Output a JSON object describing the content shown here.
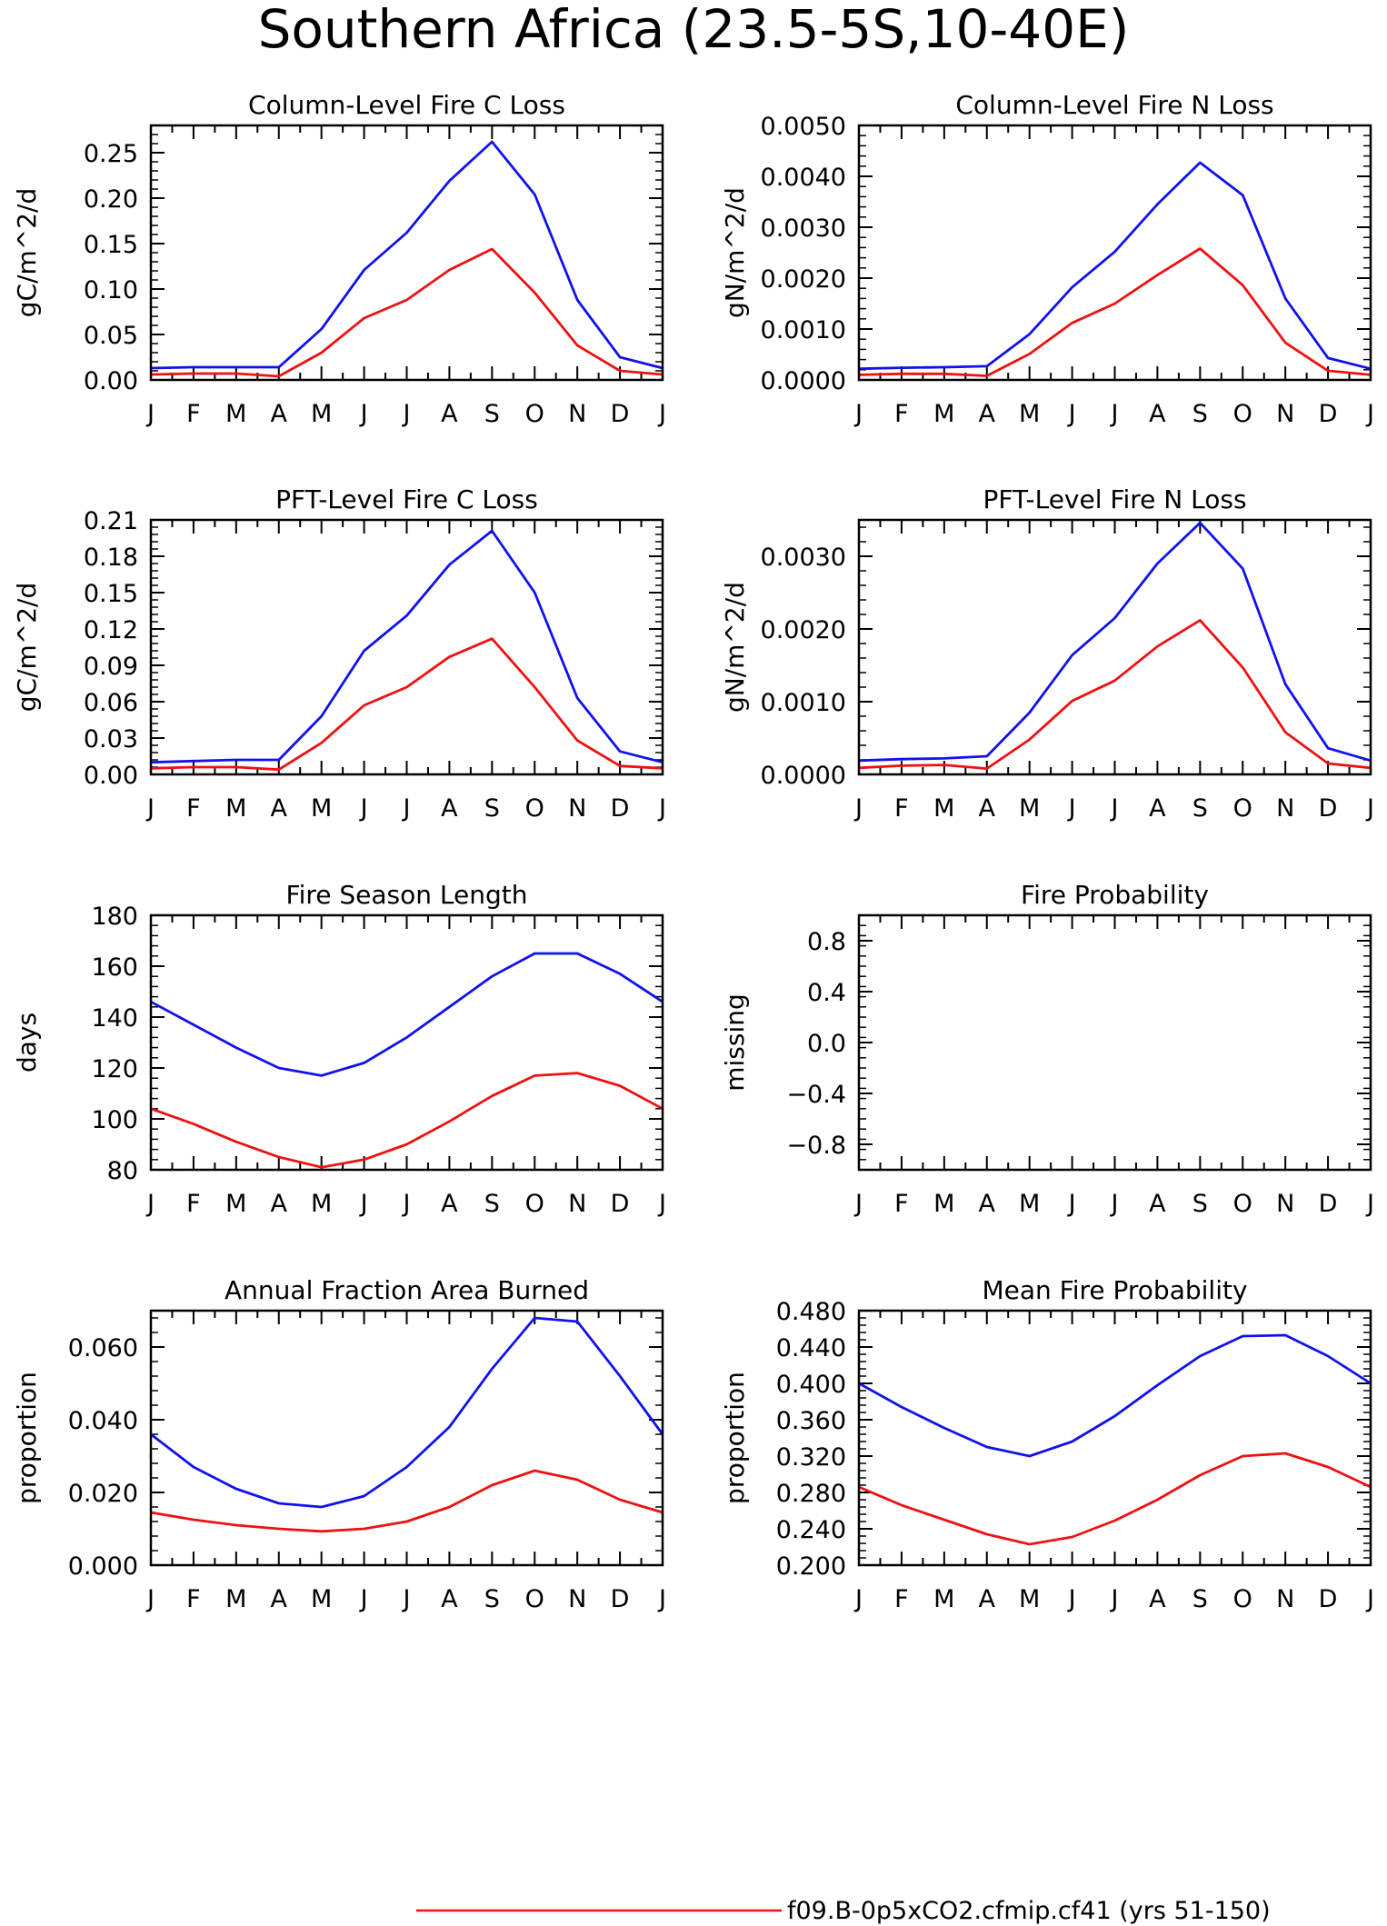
{
  "page_title": "Southern Africa (23.5-5S,10-40E)",
  "legend": {
    "entries": [
      {
        "label": "f09.B-0p5xCO2.cfmip.cf41 (yrs 51-150)",
        "color": "#ee1111"
      }
    ]
  },
  "months": [
    "J",
    "F",
    "M",
    "A",
    "M",
    "J",
    "J",
    "A",
    "S",
    "O",
    "N",
    "D",
    "J"
  ],
  "chart_data": [
    {
      "type": "line",
      "title": "Column-Level Fire C Loss",
      "ylabel": "gC/m^2/d",
      "xlabel": "",
      "categories": [
        "J",
        "F",
        "M",
        "A",
        "M",
        "J",
        "J",
        "A",
        "S",
        "O",
        "N",
        "D",
        "J"
      ],
      "ylim": [
        0,
        0.28
      ],
      "yticks": [
        "0.00",
        "0.05",
        "0.10",
        "0.15",
        "0.20",
        "0.25"
      ],
      "series": [
        {
          "color": "#1111ee",
          "values": [
            0.013,
            0.014,
            0.014,
            0.014,
            0.056,
            0.121,
            0.162,
            0.219,
            0.262,
            0.204,
            0.088,
            0.025,
            0.013
          ]
        },
        {
          "color": "#ee1111",
          "values": [
            0.006,
            0.007,
            0.007,
            0.004,
            0.03,
            0.068,
            0.088,
            0.121,
            0.144,
            0.096,
            0.038,
            0.01,
            0.006
          ]
        }
      ],
      "grid": false
    },
    {
      "type": "line",
      "title": "Column-Level Fire N Loss",
      "ylabel": "gN/m^2/d",
      "xlabel": "",
      "categories": [
        "J",
        "F",
        "M",
        "A",
        "M",
        "J",
        "J",
        "A",
        "S",
        "O",
        "N",
        "D",
        "J"
      ],
      "ylim": [
        0,
        0.005
      ],
      "yticks": [
        "0.0000",
        "0.0010",
        "0.0020",
        "0.0030",
        "0.0040",
        "0.0050"
      ],
      "series": [
        {
          "color": "#1111ee",
          "values": [
            0.00022,
            0.00024,
            0.00025,
            0.00027,
            0.0009,
            0.00182,
            0.00252,
            0.00345,
            0.00427,
            0.00363,
            0.0016,
            0.00043,
            0.00022
          ]
        },
        {
          "color": "#ee1111",
          "values": [
            0.0001,
            0.00012,
            0.00012,
            8e-05,
            0.00051,
            0.00112,
            0.0015,
            0.00206,
            0.00258,
            0.00186,
            0.00073,
            0.00018,
            0.0001
          ]
        }
      ],
      "grid": false
    },
    {
      "type": "line",
      "title": "PFT-Level Fire C Loss",
      "ylabel": "gC/m^2/d",
      "xlabel": "",
      "categories": [
        "J",
        "F",
        "M",
        "A",
        "M",
        "J",
        "J",
        "A",
        "S",
        "O",
        "N",
        "D",
        "J"
      ],
      "ylim": [
        0,
        0.21
      ],
      "yticks": [
        "0.00",
        "0.03",
        "0.06",
        "0.09",
        "0.12",
        "0.15",
        "0.18",
        "0.21"
      ],
      "series": [
        {
          "color": "#1111ee",
          "values": [
            0.01,
            0.011,
            0.012,
            0.012,
            0.048,
            0.102,
            0.131,
            0.173,
            0.201,
            0.15,
            0.063,
            0.019,
            0.01
          ]
        },
        {
          "color": "#ee1111",
          "values": [
            0.005,
            0.006,
            0.006,
            0.004,
            0.026,
            0.057,
            0.072,
            0.097,
            0.112,
            0.072,
            0.028,
            0.007,
            0.005
          ]
        }
      ],
      "grid": false
    },
    {
      "type": "line",
      "title": "PFT-Level Fire N Loss",
      "ylabel": "gN/m^2/d",
      "xlabel": "",
      "categories": [
        "J",
        "F",
        "M",
        "A",
        "M",
        "J",
        "J",
        "A",
        "S",
        "O",
        "N",
        "D",
        "J"
      ],
      "ylim": [
        0,
        0.0035
      ],
      "yticks": [
        "0.0000",
        "0.0010",
        "0.0020",
        "0.0030"
      ],
      "series": [
        {
          "color": "#1111ee",
          "values": [
            0.00019,
            0.00021,
            0.00022,
            0.00025,
            0.00085,
            0.00164,
            0.00215,
            0.0029,
            0.00346,
            0.00283,
            0.00124,
            0.00036,
            0.00019
          ]
        },
        {
          "color": "#ee1111",
          "values": [
            9e-05,
            0.00012,
            0.00013,
            8e-05,
            0.00048,
            0.00101,
            0.00129,
            0.00176,
            0.00212,
            0.00147,
            0.00058,
            0.00015,
            9e-05
          ]
        }
      ],
      "grid": false
    },
    {
      "type": "line",
      "title": "Fire Season Length",
      "ylabel": "days",
      "xlabel": "",
      "categories": [
        "J",
        "F",
        "M",
        "A",
        "M",
        "J",
        "J",
        "A",
        "S",
        "O",
        "N",
        "D",
        "J"
      ],
      "ylim": [
        80,
        180
      ],
      "yticks": [
        "80",
        "100",
        "120",
        "140",
        "160",
        "180"
      ],
      "series": [
        {
          "color": "#1111ee",
          "values": [
            146,
            137,
            128,
            120,
            117,
            122,
            132,
            144,
            156,
            165,
            165,
            157,
            146
          ]
        },
        {
          "color": "#ee1111",
          "values": [
            104,
            98,
            91,
            85,
            81,
            84,
            90,
            99,
            109,
            117,
            118,
            113,
            104
          ]
        }
      ],
      "grid": false
    },
    {
      "type": "line",
      "title": "Fire Probability",
      "ylabel": "missing",
      "xlabel": "",
      "categories": [
        "J",
        "F",
        "M",
        "A",
        "M",
        "J",
        "J",
        "A",
        "S",
        "O",
        "N",
        "D",
        "J"
      ],
      "ylim": [
        -1.0,
        1.0
      ],
      "yticks": [
        "−0.8",
        "−0.4",
        "0.0",
        "0.4",
        "0.8"
      ],
      "ytick_values": [
        -0.8,
        -0.4,
        0.0,
        0.4,
        0.8
      ],
      "series": [],
      "grid": false
    },
    {
      "type": "line",
      "title": "Annual Fraction Area Burned",
      "ylabel": "proportion",
      "xlabel": "",
      "categories": [
        "J",
        "F",
        "M",
        "A",
        "M",
        "J",
        "J",
        "A",
        "S",
        "O",
        "N",
        "D",
        "J"
      ],
      "ylim": [
        0,
        0.07
      ],
      "yticks": [
        "0.000",
        "0.020",
        "0.040",
        "0.060"
      ],
      "series": [
        {
          "color": "#1111ee",
          "values": [
            0.036,
            0.027,
            0.021,
            0.017,
            0.016,
            0.019,
            0.027,
            0.038,
            0.054,
            0.068,
            0.067,
            0.052,
            0.036
          ]
        },
        {
          "color": "#ee1111",
          "values": [
            0.0145,
            0.0125,
            0.011,
            0.01,
            0.0093,
            0.01,
            0.012,
            0.016,
            0.022,
            0.026,
            0.0235,
            0.018,
            0.0145
          ]
        }
      ],
      "grid": false
    },
    {
      "type": "line",
      "title": "Mean Fire Probability",
      "ylabel": "proportion",
      "xlabel": "",
      "categories": [
        "J",
        "F",
        "M",
        "A",
        "M",
        "J",
        "J",
        "A",
        "S",
        "O",
        "N",
        "D",
        "J"
      ],
      "ylim": [
        0.2,
        0.48
      ],
      "yticks": [
        "0.200",
        "0.240",
        "0.280",
        "0.320",
        "0.360",
        "0.400",
        "0.440",
        "0.480"
      ],
      "series": [
        {
          "color": "#1111ee",
          "values": [
            0.4,
            0.374,
            0.351,
            0.33,
            0.32,
            0.336,
            0.364,
            0.398,
            0.43,
            0.452,
            0.453,
            0.43,
            0.4
          ]
        },
        {
          "color": "#ee1111",
          "values": [
            0.286,
            0.266,
            0.25,
            0.234,
            0.223,
            0.231,
            0.249,
            0.272,
            0.299,
            0.32,
            0.323,
            0.308,
            0.286
          ]
        }
      ],
      "grid": false
    }
  ]
}
